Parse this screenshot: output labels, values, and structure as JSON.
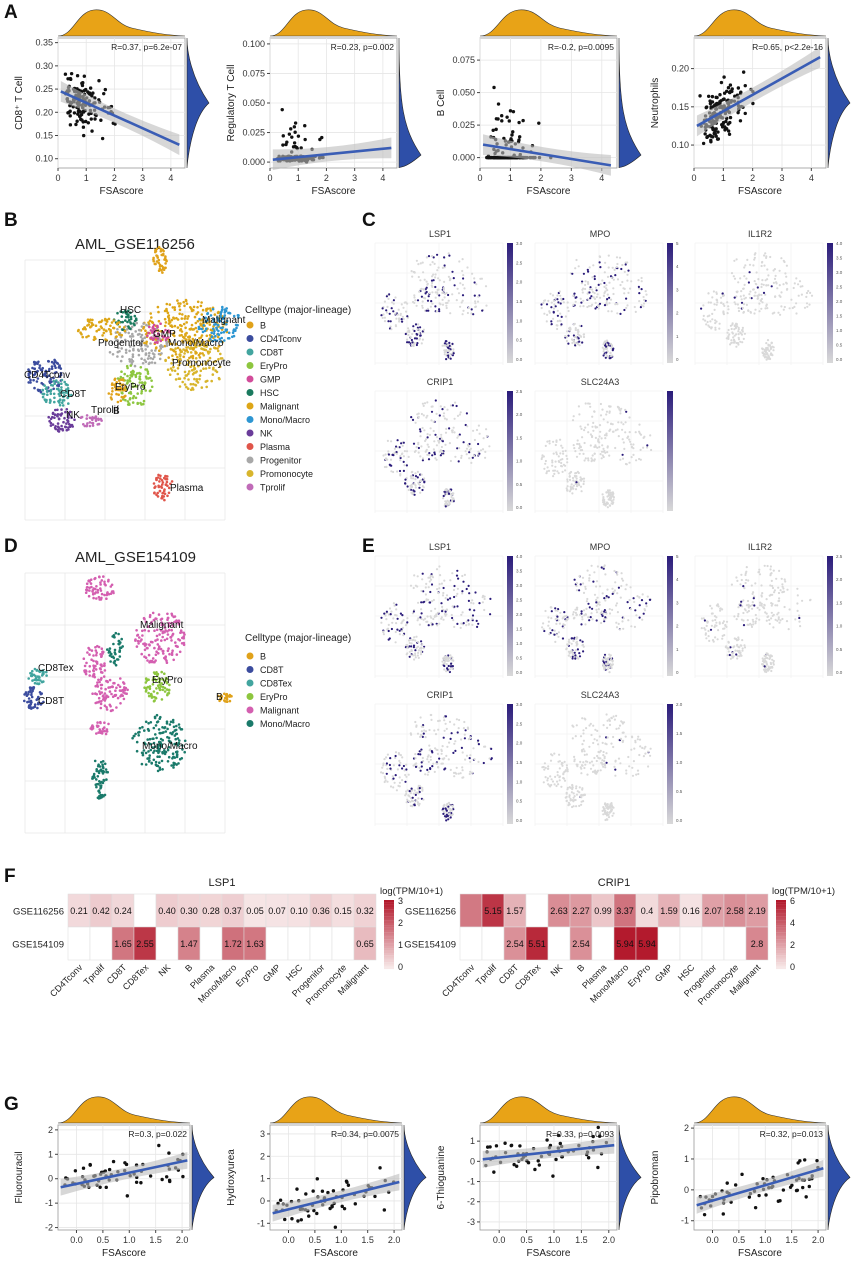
{
  "panels": {
    "A": "A",
    "B": "B",
    "C": "C",
    "D": "D",
    "E": "E",
    "F": "F",
    "G": "G"
  },
  "colors": {
    "density_top": "#E8A317",
    "density_right": "#2E4FA8",
    "reg_line": "#3A5DB5",
    "band": "#BDBDBD",
    "point": "#111111",
    "B": "#E0A21A",
    "CD4Tconv": "#3B4C9E",
    "CD8T": "#42A59F",
    "EryPro": "#8DC63F",
    "GMP": "#D24C9A",
    "HSC": "#1A7A5E",
    "Malignant": "#DDA617",
    "Mono/Macro": "#2E96D2",
    "NK": "#6A3C9A",
    "Plasma": "#E0554A",
    "Progenitor": "#A8A8A8",
    "Promonocyte": "#D8B52C",
    "Tprolif": "#C06BB8",
    "D_B": "#E0A21A",
    "D_CD8T": "#3B4C9E",
    "D_CD8Tex": "#42A59F",
    "D_EryPro": "#8DC63F",
    "D_Malignant": "#D45FB0",
    "D_Mono/Macro": "#1A7A6A",
    "expr_low": "#D9D9D9",
    "expr_high": "#2A1B7A",
    "heat_high": "#B2182B",
    "heat_low": "#F7F7F7"
  },
  "chart_data": [
    {
      "id": "A1",
      "type": "scatter",
      "xlabel": "FSAscore",
      "ylabel": "CD8⁺ T Cell",
      "stat": "R=0.37, p=6.2e-07",
      "xlim": [
        0,
        4.5
      ],
      "ylim": [
        0.08,
        0.36
      ],
      "xticks": [
        "0",
        "1",
        "2",
        "3",
        "4"
      ],
      "yticks": [
        "0.10",
        "0.15",
        "0.20",
        "0.25",
        "0.30",
        "0.35"
      ],
      "fit": {
        "x0": 0.1,
        "y0": 0.245,
        "x1": 4.3,
        "y1": 0.13
      },
      "n_points": 150
    },
    {
      "id": "A2",
      "type": "scatter",
      "xlabel": "FSAscore",
      "ylabel": "Regulatory T Cell",
      "stat": "R=0.23, p=0.002",
      "xlim": [
        0,
        4.5
      ],
      "ylim": [
        -0.005,
        0.105
      ],
      "xticks": [
        "0",
        "1",
        "2",
        "3",
        "4"
      ],
      "yticks": [
        "0.000",
        "0.025",
        "0.050",
        "0.075",
        "0.100"
      ],
      "fit": {
        "x0": 0.1,
        "y0": 0.002,
        "x1": 4.3,
        "y1": 0.012
      },
      "n_points": 150
    },
    {
      "id": "A3",
      "type": "scatter",
      "xlabel": "FSAscore",
      "ylabel": "B Cell",
      "stat": "R=-0.2, p=0.0095",
      "xlim": [
        0,
        4.5
      ],
      "ylim": [
        -0.008,
        0.092
      ],
      "xticks": [
        "0",
        "1",
        "2",
        "3",
        "4"
      ],
      "yticks": [
        "0.000",
        "0.025",
        "0.050",
        "0.075"
      ],
      "fit": {
        "x0": 0.1,
        "y0": 0.01,
        "x1": 4.3,
        "y1": -0.006
      },
      "n_points": 150
    },
    {
      "id": "A4",
      "type": "scatter",
      "xlabel": "FSAscore",
      "ylabel": "Neutrophils",
      "stat": "R=0.65, p<2.2e-16",
      "xlim": [
        0,
        4.5
      ],
      "ylim": [
        0.07,
        0.24
      ],
      "xticks": [
        "0",
        "1",
        "2",
        "3",
        "4"
      ],
      "yticks": [
        "0.10",
        "0.15",
        "0.20"
      ],
      "fit": {
        "x0": 0.1,
        "y0": 0.125,
        "x1": 4.3,
        "y1": 0.215
      },
      "n_points": 150
    },
    {
      "id": "G1",
      "type": "scatter",
      "xlabel": "FSAscore",
      "ylabel": "Fluorouracil",
      "stat": "R=0.3, p=0.022",
      "xlim": [
        -0.35,
        2.15
      ],
      "ylim": [
        -2.1,
        2.2
      ],
      "xticks": [
        "0.0",
        "0.5",
        "1.0",
        "1.5",
        "2.0"
      ],
      "yticks": [
        "-2",
        "-1",
        "0",
        "1",
        "2"
      ],
      "fit": {
        "x0": -0.3,
        "y0": -0.35,
        "x1": 2.1,
        "y1": 0.75
      },
      "n_points": 60
    },
    {
      "id": "G2",
      "type": "scatter",
      "xlabel": "FSAscore",
      "ylabel": "Hydroxyurea",
      "stat": "R=0.34, p=0.0075",
      "xlim": [
        -0.35,
        2.15
      ],
      "ylim": [
        -1.3,
        3.4
      ],
      "xticks": [
        "0.0",
        "0.5",
        "1.0",
        "1.5",
        "2.0"
      ],
      "yticks": [
        "-1",
        "0",
        "1",
        "2",
        "3"
      ],
      "fit": {
        "x0": -0.3,
        "y0": -0.55,
        "x1": 2.1,
        "y1": 0.85
      },
      "n_points": 60
    },
    {
      "id": "G3",
      "type": "scatter",
      "xlabel": "FSAscore",
      "ylabel": "6-Thioguanine",
      "stat": "R=0.33, p=0.0093",
      "xlim": [
        -0.35,
        2.15
      ],
      "ylim": [
        -3.4,
        1.8
      ],
      "xticks": [
        "0.0",
        "0.5",
        "1.0",
        "1.5",
        "2.0"
      ],
      "yticks": [
        "-3",
        "-2",
        "-1",
        "0",
        "1"
      ],
      "fit": {
        "x0": -0.3,
        "y0": 0.1,
        "x1": 2.1,
        "y1": 0.8
      },
      "n_points": 60
    },
    {
      "id": "G4",
      "type": "scatter",
      "xlabel": "FSAscore",
      "ylabel": "Pipobroman",
      "stat": "R=0.32, p=0.013",
      "xlim": [
        -0.35,
        2.15
      ],
      "ylim": [
        -1.3,
        2.1
      ],
      "xticks": [
        "0.0",
        "0.5",
        "1.0",
        "1.5",
        "2.0"
      ],
      "yticks": [
        "-1",
        "0",
        "1",
        "2"
      ],
      "fit": {
        "x0": -0.3,
        "y0": -0.5,
        "x1": 2.1,
        "y1": 0.7
      },
      "n_points": 60
    },
    {
      "id": "F1",
      "type": "heatmap",
      "title": "LSP1",
      "legend_title": "log(TPM/10+1)",
      "legend_ticks": [
        "3",
        "2",
        "1",
        "0"
      ],
      "vmax": 3,
      "rows": [
        "GSE116256",
        "GSE154109"
      ],
      "cols": [
        "CD4Tconv",
        "Tprolif",
        "CD8T",
        "CD8Tex",
        "NK",
        "B",
        "Plasma",
        "Mono/Macro",
        "EryPro",
        "GMP",
        "HSC",
        "Progenitor",
        "Promonocyte",
        "Malignant"
      ],
      "values": [
        [
          0.21,
          0.42,
          0.24,
          null,
          0.4,
          0.3,
          0.28,
          0.37,
          0.05,
          0.07,
          0.1,
          0.36,
          0.15,
          0.32
        ],
        [
          null,
          null,
          1.65,
          2.55,
          null,
          1.47,
          null,
          1.72,
          1.63,
          null,
          null,
          null,
          null,
          0.65
        ]
      ],
      "labels": [
        [
          "0.21",
          "0.42",
          "0.24",
          "",
          "0.40",
          "0.30",
          "0.28",
          "0.37",
          "0.05",
          "0.07",
          "0.10",
          "0.36",
          "0.15",
          "0.32"
        ],
        [
          "",
          "",
          "1.65",
          "2.55",
          "",
          "1.47",
          "",
          "1.72",
          "1.63",
          "",
          "",
          "",
          "",
          "0.65"
        ]
      ]
    },
    {
      "id": "F2",
      "type": "heatmap",
      "title": "CRIP1",
      "legend_title": "log(TPM/10+1)",
      "legend_ticks": [
        "6",
        "4",
        "2",
        "0"
      ],
      "vmax": 6,
      "rows": [
        "GSE116256",
        "GSE154109"
      ],
      "cols": [
        "CD4Tconv",
        "Tprolif",
        "CD8T",
        "CD8Tex",
        "NK",
        "B",
        "Plasma",
        "Mono/Macro",
        "EryPro",
        "GMP",
        "HSC",
        "Progenitor",
        "Promonocyte",
        "Malignant"
      ],
      "values": [
        [
          3.2,
          5.15,
          1.57,
          null,
          2.63,
          2.27,
          0.99,
          3.37,
          0.4,
          1.59,
          0.16,
          2.07,
          2.58,
          2.19
        ],
        [
          null,
          null,
          2.54,
          5.51,
          null,
          2.54,
          null,
          5.94,
          5.94,
          null,
          null,
          null,
          null,
          2.8
        ]
      ],
      "labels": [
        [
          "",
          "5.15",
          "1.57",
          "",
          "2.63",
          "2.27",
          "0.99",
          "3.37",
          "0.4",
          "1.59",
          "0.16",
          "2.07",
          "2.58",
          "2.19"
        ],
        [
          "",
          "",
          "2.54",
          "5.51",
          "",
          "2.54",
          "",
          "5.94",
          "5.94",
          "",
          "",
          "",
          "",
          "2.8"
        ]
      ]
    }
  ],
  "umap_B": {
    "title": "AML_GSE116256",
    "legend_title": "Celltype (major-lineage)",
    "legend": [
      "B",
      "CD4Tconv",
      "CD8T",
      "EryPro",
      "GMP",
      "HSC",
      "Malignant",
      "Mono/Macro",
      "NK",
      "Plasma",
      "Progenitor",
      "Promonocyte",
      "Tprolif"
    ],
    "labels": [
      "HSC",
      "Malignant",
      "GMP",
      "Mono/Macro",
      "Progenitor",
      "Promonocyte",
      "EryPro",
      "B",
      "CD4Tconv",
      "CD8T",
      "NK",
      "Tprolif",
      "Plasma"
    ]
  },
  "umap_D": {
    "title": "AML_GSE154109",
    "legend_title": "Celltype (major-lineage)",
    "legend": [
      "B",
      "CD8T",
      "CD8Tex",
      "EryPro",
      "Malignant",
      "Mono/Macro"
    ],
    "labels": [
      "Malignant",
      "CD8Tex",
      "CD8T",
      "EryPro",
      "B",
      "Mono/Macro"
    ]
  },
  "feature_C": {
    "genes": [
      "LSP1",
      "MPO",
      "IL1R2",
      "CRIP1",
      "SLC24A3"
    ],
    "scales": [
      [
        "3.0",
        "2.5",
        "2.0",
        "1.5",
        "1.0",
        "0.5",
        "0.0"
      ],
      [
        "5",
        "4",
        "3",
        "2",
        "1",
        "0"
      ],
      [
        "4.0",
        "3.5",
        "3.0",
        "2.5",
        "2.0",
        "1.5",
        "1.0",
        "0.5",
        "0.0"
      ],
      [
        "2.5",
        "2.0",
        "1.5",
        "1.0",
        "0.5",
        "0.0"
      ],
      []
    ]
  },
  "feature_E": {
    "genes": [
      "LSP1",
      "MPO",
      "IL1R2",
      "CRIP1",
      "SLC24A3"
    ],
    "scales": [
      [
        "4.0",
        "3.5",
        "3.0",
        "2.5",
        "2.0",
        "1.5",
        "1.0",
        "0.5",
        "0.0"
      ],
      [
        "5",
        "4",
        "3",
        "2",
        "1",
        "0"
      ],
      [
        "2.5",
        "2.0",
        "1.5",
        "1.0",
        "0.5",
        "0.0"
      ],
      [
        "3.0",
        "2.5",
        "2.0",
        "1.5",
        "1.0",
        "0.5",
        "0.0"
      ],
      [
        "2.0",
        "1.5",
        "1.0",
        "0.5",
        "0.0"
      ]
    ]
  }
}
